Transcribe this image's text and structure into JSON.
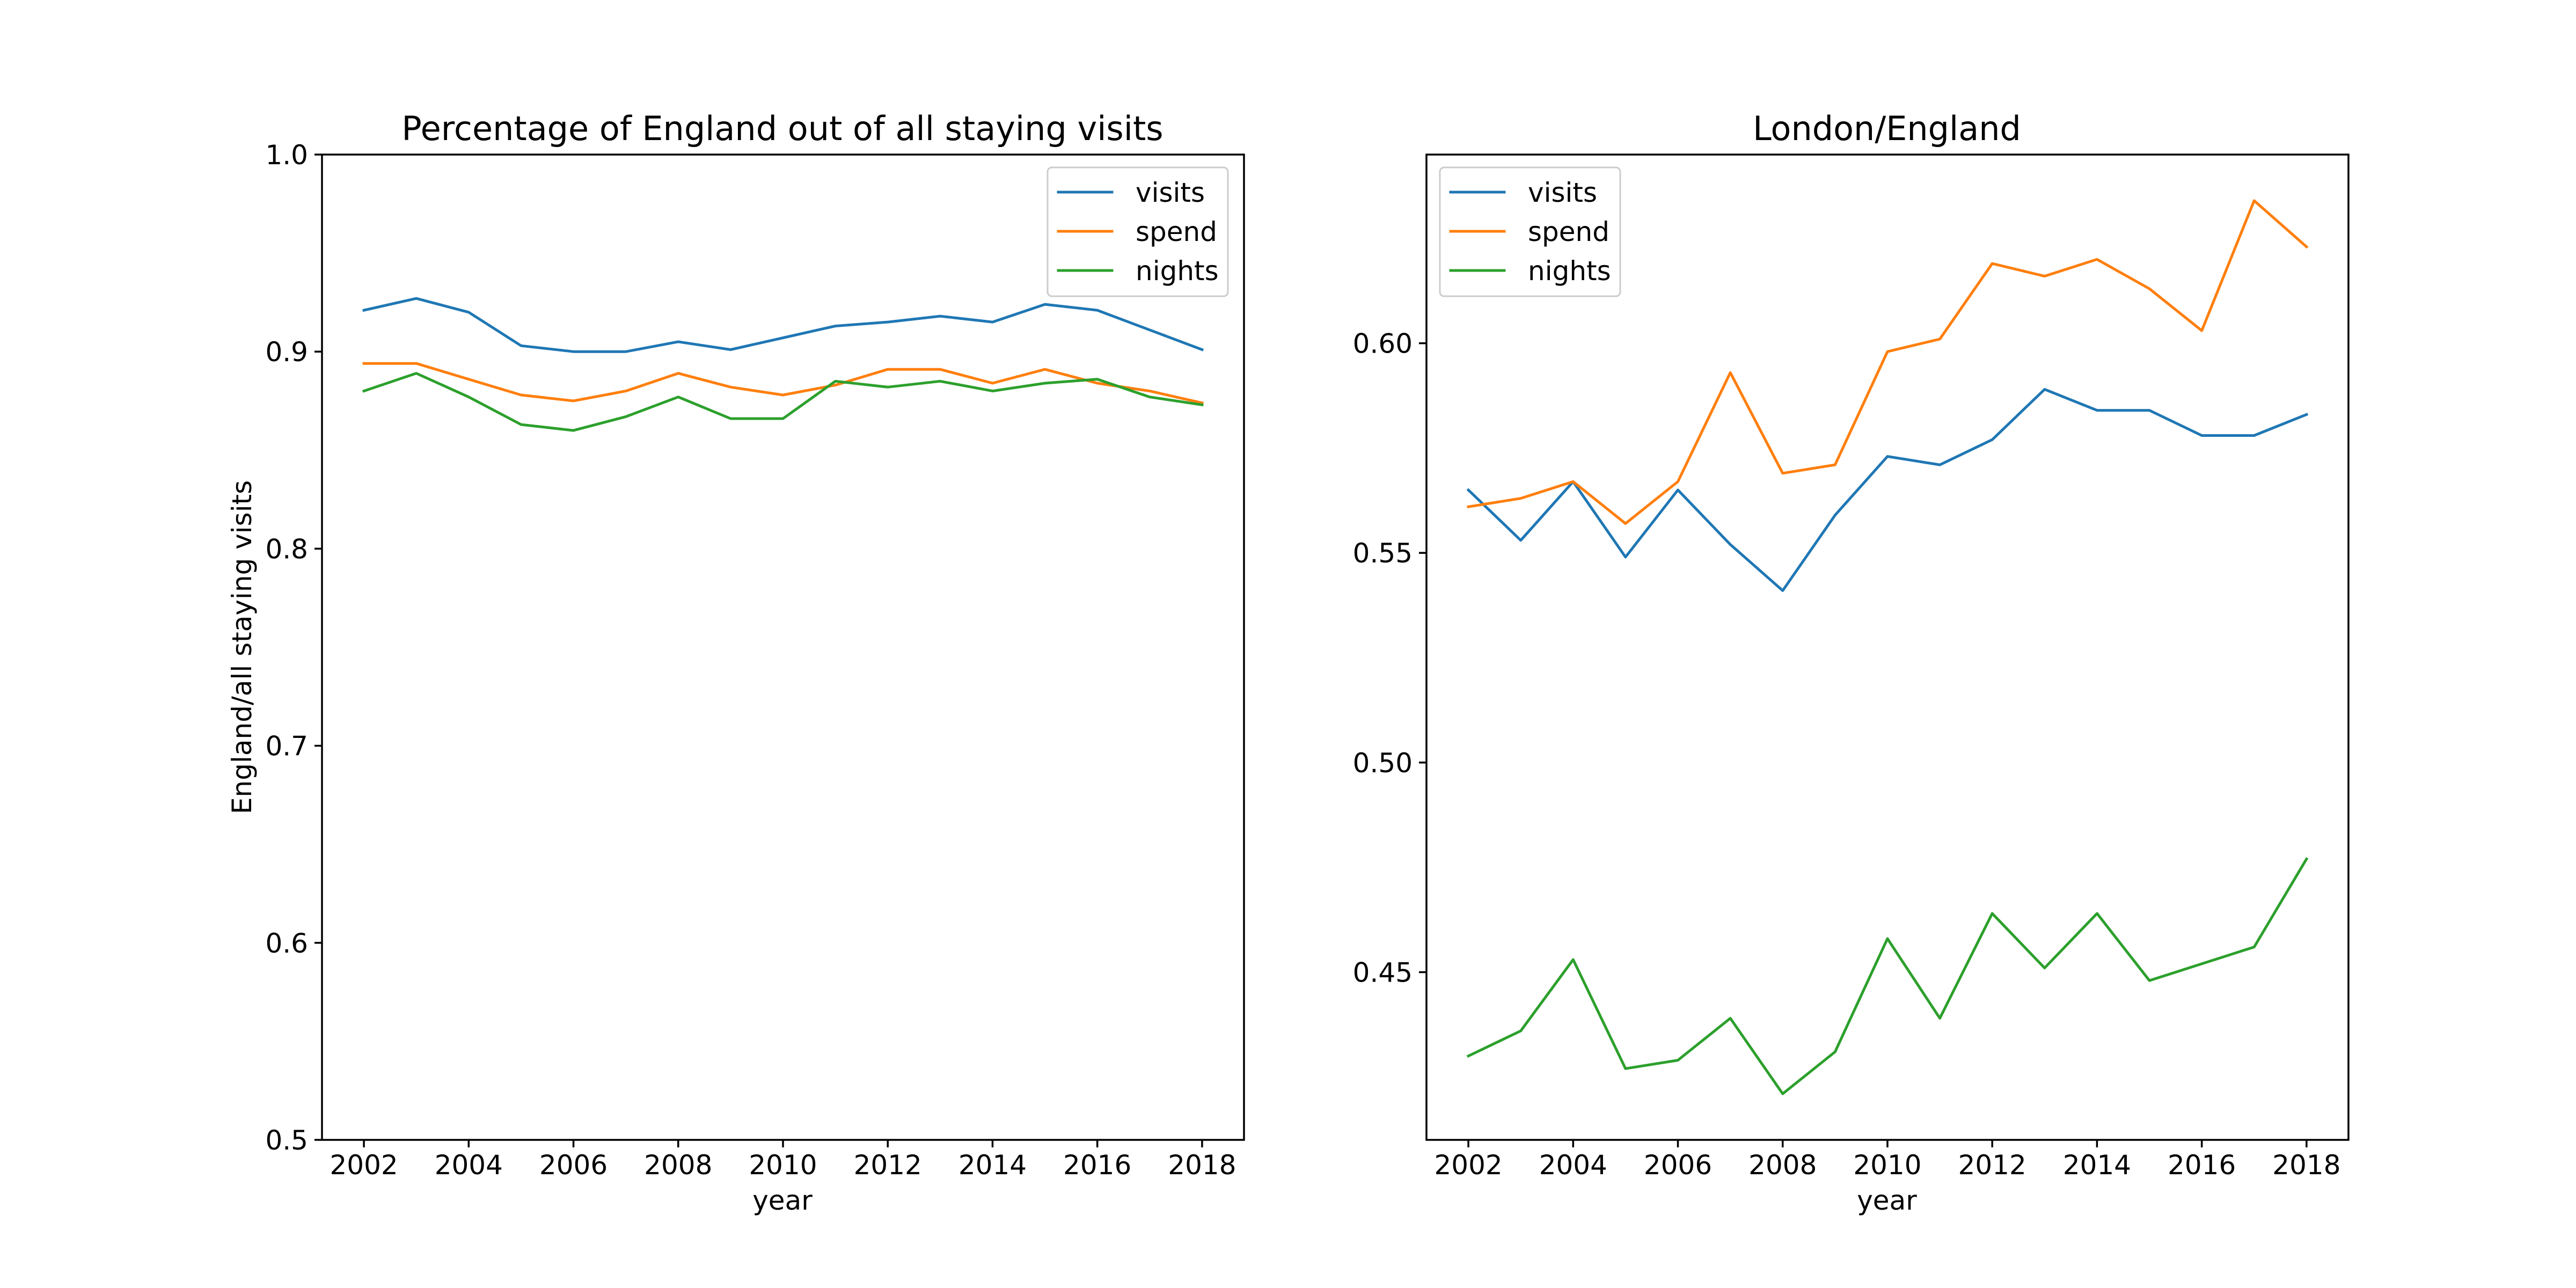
{
  "colors": {
    "visits": "#1f77b4",
    "spend": "#ff7f0e",
    "nights": "#2ca02c"
  },
  "chart_data": [
    {
      "type": "line",
      "title": "Percentage of England out of all staying visits",
      "xlabel": "year",
      "ylabel": "England/all staying visits",
      "xlim": [
        2001.2,
        2018.8
      ],
      "ylim": [
        0.5,
        1.0
      ],
      "xticks": [
        2002,
        2004,
        2006,
        2008,
        2010,
        2012,
        2014,
        2016,
        2018
      ],
      "xtick_labels": [
        "2002",
        "2004",
        "2006",
        "2008",
        "2010",
        "2012",
        "2014",
        "2016",
        "2018"
      ],
      "yticks": [
        0.5,
        0.6,
        0.7,
        0.8,
        0.9,
        1.0
      ],
      "ytick_labels": [
        "0.5",
        "0.6",
        "0.7",
        "0.8",
        "0.9",
        "1.0"
      ],
      "legend_position": "top-right",
      "grid": false,
      "x": [
        2002,
        2003,
        2004,
        2005,
        2006,
        2007,
        2008,
        2009,
        2010,
        2011,
        2012,
        2013,
        2014,
        2015,
        2016,
        2017,
        2018
      ],
      "series": [
        {
          "name": "visits",
          "color_key": "visits",
          "values": [
            0.921,
            0.927,
            0.92,
            0.903,
            0.9,
            0.9,
            0.905,
            0.901,
            0.907,
            0.913,
            0.915,
            0.918,
            0.915,
            0.924,
            0.921,
            0.911,
            0.901
          ]
        },
        {
          "name": "spend",
          "color_key": "spend",
          "values": [
            0.894,
            0.894,
            0.886,
            0.878,
            0.875,
            0.88,
            0.889,
            0.882,
            0.878,
            0.883,
            0.891,
            0.891,
            0.884,
            0.891,
            0.884,
            0.88,
            0.874
          ]
        },
        {
          "name": "nights",
          "color_key": "nights",
          "values": [
            0.88,
            0.889,
            0.877,
            0.863,
            0.86,
            0.867,
            0.877,
            0.866,
            0.866,
            0.885,
            0.882,
            0.885,
            0.88,
            0.884,
            0.886,
            0.877,
            0.873
          ]
        }
      ]
    },
    {
      "type": "line",
      "title": "London/England",
      "xlabel": "year",
      "ylabel": "",
      "xlim": [
        2001.2,
        2018.8
      ],
      "ylim": [
        0.41,
        0.645
      ],
      "xticks": [
        2002,
        2004,
        2006,
        2008,
        2010,
        2012,
        2014,
        2016,
        2018
      ],
      "xtick_labels": [
        "2002",
        "2004",
        "2006",
        "2008",
        "2010",
        "2012",
        "2014",
        "2016",
        "2018"
      ],
      "yticks": [
        0.45,
        0.5,
        0.55,
        0.6
      ],
      "ytick_labels": [
        "0.45",
        "0.50",
        "0.55",
        "0.60"
      ],
      "legend_position": "top-left",
      "grid": false,
      "x": [
        2002,
        2003,
        2004,
        2005,
        2006,
        2007,
        2008,
        2009,
        2010,
        2011,
        2012,
        2013,
        2014,
        2015,
        2016,
        2017,
        2018
      ],
      "series": [
        {
          "name": "visits",
          "color_key": "visits",
          "values": [
            0.565,
            0.553,
            0.567,
            0.549,
            0.565,
            0.552,
            0.541,
            0.559,
            0.573,
            0.571,
            0.577,
            0.589,
            0.584,
            0.584,
            0.578,
            0.578,
            0.583
          ]
        },
        {
          "name": "spend",
          "color_key": "spend",
          "values": [
            0.561,
            0.563,
            0.567,
            0.557,
            0.567,
            0.593,
            0.569,
            0.571,
            0.598,
            0.601,
            0.619,
            0.616,
            0.62,
            0.613,
            0.603,
            0.634,
            0.623
          ]
        },
        {
          "name": "nights",
          "color_key": "nights",
          "values": [
            0.43,
            0.436,
            0.453,
            0.427,
            0.429,
            0.439,
            0.421,
            0.431,
            0.458,
            0.439,
            0.464,
            0.451,
            0.464,
            0.448,
            0.452,
            0.456,
            0.477
          ]
        }
      ]
    }
  ]
}
